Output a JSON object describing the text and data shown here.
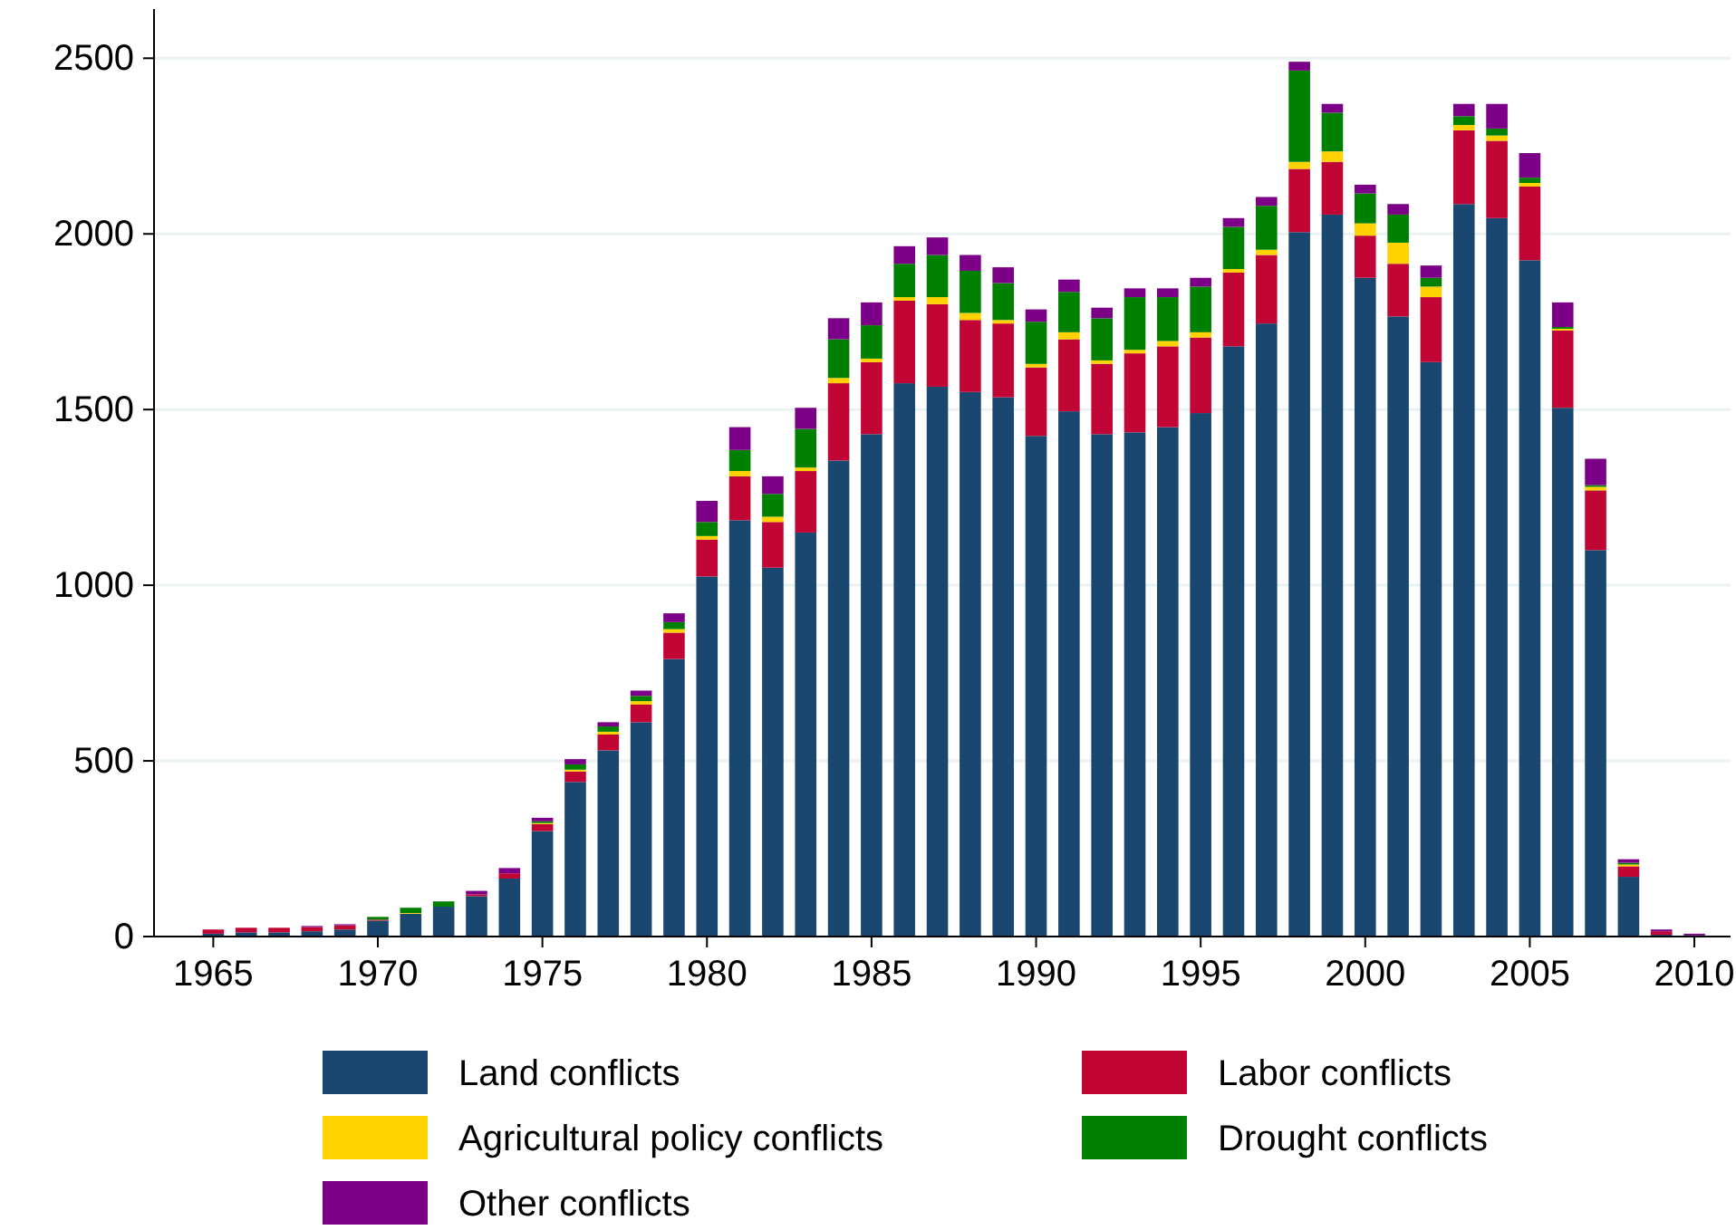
{
  "chart_data": {
    "type": "bar",
    "stacked": true,
    "grid": "y",
    "legend": "bottom",
    "x": [
      1965,
      1966,
      1967,
      1968,
      1969,
      1970,
      1971,
      1972,
      1973,
      1974,
      1975,
      1976,
      1977,
      1978,
      1979,
      1980,
      1981,
      1982,
      1983,
      1984,
      1985,
      1986,
      1987,
      1988,
      1989,
      1990,
      1991,
      1992,
      1993,
      1994,
      1995,
      1996,
      1997,
      1998,
      1999,
      2000,
      2001,
      2002,
      2003,
      2004,
      2005,
      2006,
      2007,
      2008,
      2009,
      2010
    ],
    "xlim": [
      1963.2,
      2011.1
    ],
    "xticks": [
      1965,
      1970,
      1975,
      1980,
      1985,
      1990,
      1995,
      2000,
      2005,
      2010
    ],
    "ylim": [
      0,
      2640
    ],
    "yticks": [
      0,
      500,
      1000,
      1500,
      2000,
      2500
    ],
    "series": [
      {
        "name": "Land conflicts",
        "color": "#1a476f",
        "values": [
          8,
          12,
          12,
          15,
          20,
          45,
          65,
          85,
          115,
          165,
          300,
          440,
          530,
          610,
          790,
          1025,
          1185,
          1050,
          1150,
          1355,
          1430,
          1575,
          1565,
          1550,
          1535,
          1425,
          1495,
          1430,
          1435,
          1450,
          1490,
          1680,
          1745,
          2005,
          2055,
          1875,
          1765,
          1635,
          2085,
          2045,
          1925,
          1505,
          1100,
          170,
          5,
          3
        ]
      },
      {
        "name": "Labor conflicts",
        "color": "#c10534",
        "values": [
          12,
          13,
          13,
          12,
          12,
          3,
          0,
          0,
          5,
          15,
          20,
          30,
          45,
          50,
          75,
          105,
          125,
          130,
          175,
          220,
          205,
          235,
          235,
          205,
          210,
          195,
          205,
          200,
          225,
          230,
          215,
          210,
          195,
          180,
          150,
          120,
          150,
          185,
          210,
          220,
          210,
          220,
          170,
          30,
          10,
          0
        ]
      },
      {
        "name": "Agricultural policy conflicts",
        "color": "#ffd200",
        "values": [
          0,
          0,
          0,
          0,
          0,
          0,
          2,
          0,
          0,
          0,
          3,
          5,
          8,
          10,
          10,
          10,
          15,
          15,
          10,
          15,
          10,
          10,
          20,
          20,
          10,
          10,
          20,
          10,
          10,
          15,
          15,
          10,
          15,
          20,
          30,
          35,
          60,
          30,
          15,
          15,
          10,
          5,
          10,
          5,
          0,
          0
        ]
      },
      {
        "name": "Drought conflicts",
        "color": "#008000",
        "values": [
          0,
          0,
          0,
          0,
          0,
          8,
          15,
          15,
          0,
          0,
          5,
          15,
          15,
          15,
          20,
          40,
          60,
          65,
          110,
          110,
          95,
          95,
          120,
          120,
          105,
          120,
          115,
          120,
          150,
          125,
          130,
          120,
          125,
          260,
          110,
          85,
          80,
          25,
          25,
          20,
          15,
          5,
          5,
          5,
          0,
          0
        ]
      },
      {
        "name": "Other conflicts",
        "color": "#7c0087",
        "values": [
          0,
          0,
          0,
          3,
          3,
          0,
          0,
          0,
          10,
          15,
          10,
          15,
          12,
          15,
          25,
          60,
          65,
          50,
          60,
          60,
          65,
          50,
          50,
          45,
          45,
          35,
          35,
          30,
          25,
          25,
          25,
          25,
          25,
          25,
          25,
          25,
          30,
          35,
          35,
          70,
          70,
          70,
          75,
          10,
          5,
          5
        ]
      }
    ]
  }
}
